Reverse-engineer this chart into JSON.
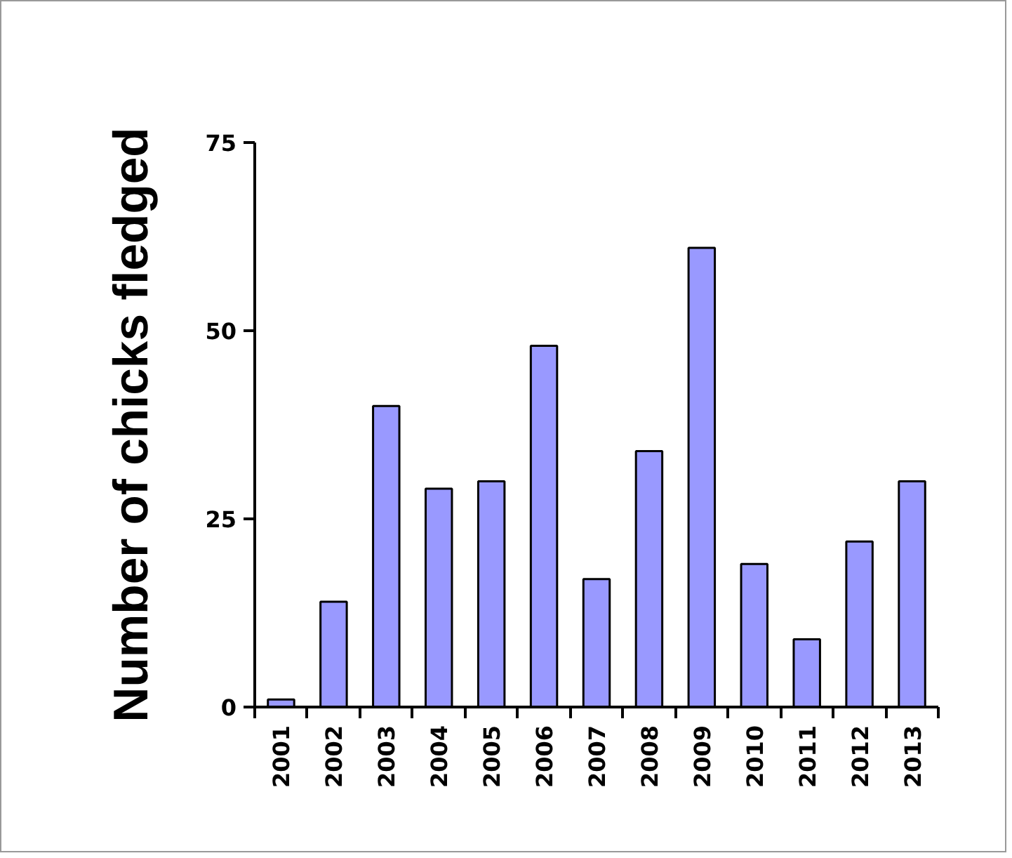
{
  "chart_data": {
    "type": "bar",
    "ylabel": "Number of chicks fledged",
    "categories": [
      "2001",
      "2002",
      "2003",
      "2004",
      "2005",
      "2006",
      "2007",
      "2008",
      "2009",
      "2010",
      "2011",
      "2012",
      "2013"
    ],
    "values": [
      1,
      14,
      40,
      29,
      30,
      48,
      17,
      34,
      61,
      19,
      9,
      22,
      30
    ],
    "color": "#9999ff",
    "ylim": [
      0,
      75
    ],
    "yticks": [
      0,
      25,
      50,
      75
    ],
    "grid": false
  }
}
